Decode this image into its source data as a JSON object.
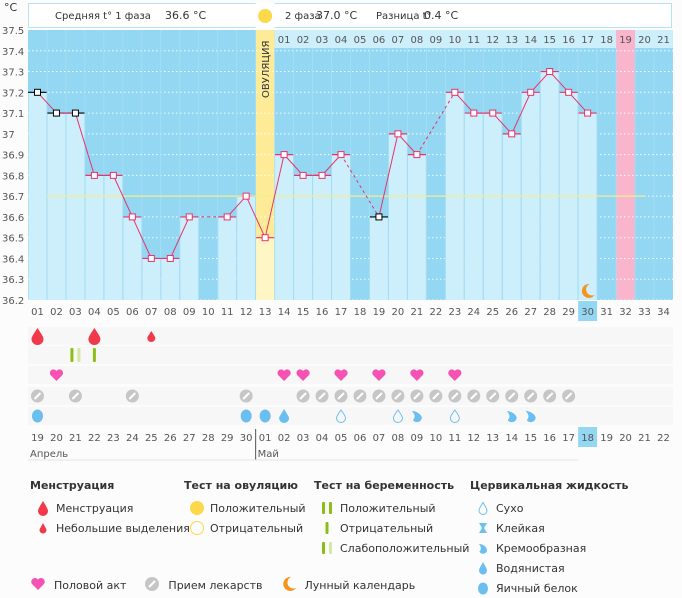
{
  "header": {
    "unit": "°C",
    "phase1_label": "Средняя t° 1 фаза",
    "phase1_value": "36.6 °C",
    "phase2_label": "2 фаза",
    "phase2_value": "37.0 °C",
    "diff_label": "Разница t°",
    "diff_value": "0.4 °C",
    "ovulation_label": "ОВУЛЯЦИЯ"
  },
  "chart_data": {
    "type": "line",
    "title": "",
    "ylabel": "°C",
    "ylim": [
      36.2,
      37.5
    ],
    "yticks": [
      "37.5",
      "37.4",
      "37.3",
      "37.2",
      "37.1",
      "37",
      "36.9",
      "36.8",
      "36.7",
      "36.6",
      "36.5",
      "36.4",
      "36.3",
      "36.2"
    ],
    "coverline": 36.7,
    "ovulation_day": 13,
    "cycle_days": [
      "01",
      "02",
      "03",
      "04",
      "05",
      "06",
      "07",
      "08",
      "09",
      "10",
      "11",
      "12",
      "13",
      "14",
      "15",
      "16",
      "17",
      "18",
      "19",
      "20",
      "21",
      "22",
      "23",
      "24",
      "25",
      "26",
      "27",
      "28",
      "29",
      "30",
      "31",
      "32",
      "33",
      "34"
    ],
    "post_ovulation_days": [
      "01",
      "02",
      "03",
      "04",
      "05",
      "06",
      "07",
      "08",
      "09",
      "10",
      "11",
      "12",
      "13",
      "14",
      "15",
      "16",
      "17",
      "18",
      "19",
      "20",
      "21"
    ],
    "current_day": 30,
    "expected_period_day": 32,
    "series": [
      {
        "name": "Базальная температура",
        "values": [
          37.2,
          37.1,
          37.1,
          36.8,
          36.8,
          36.6,
          36.4,
          36.4,
          36.6,
          null,
          36.6,
          36.7,
          36.5,
          36.9,
          36.8,
          36.8,
          36.9,
          null,
          36.6,
          37.0,
          36.9,
          null,
          37.2,
          37.1,
          37.1,
          37.0,
          37.2,
          37.3,
          37.2,
          37.1,
          null,
          null,
          null,
          null
        ],
        "excluded_days": [
          1,
          2,
          3,
          19
        ]
      }
    ],
    "calendar_dates": [
      "19",
      "20",
      "21",
      "22",
      "23",
      "24",
      "25",
      "26",
      "27",
      "28",
      "29",
      "30",
      "01",
      "02",
      "03",
      "04",
      "05",
      "06",
      "07",
      "08",
      "09",
      "10",
      "11",
      "12",
      "13",
      "14",
      "15",
      "16",
      "17",
      "18",
      "19",
      "20",
      "21",
      "22"
    ],
    "weekend_indices": [
      1,
      2,
      8,
      9,
      15,
      16,
      22,
      23,
      30
    ],
    "today_index": 29,
    "months": [
      {
        "label": "Апрель",
        "start_index": 0
      },
      {
        "label": "Май",
        "start_index": 12
      }
    ],
    "markers": {
      "menstruation": [
        {
          "day": 1,
          "size": "heavy"
        },
        {
          "day": 4,
          "size": "heavy"
        },
        {
          "day": 7,
          "size": "light"
        }
      ],
      "pregnancy_test": [
        {
          "day": 3,
          "result": "weak"
        },
        {
          "day": 4,
          "result": "negative"
        }
      ],
      "intercourse": [
        2,
        14,
        15,
        17,
        19,
        21,
        23
      ],
      "medication": [
        1,
        3,
        6,
        12,
        15,
        16,
        17,
        18,
        19,
        20,
        21,
        22,
        23,
        24,
        25,
        26,
        27,
        28,
        29
      ],
      "cervical_fluid": [
        {
          "day": 1,
          "type": "egg_white"
        },
        {
          "day": 12,
          "type": "egg_white"
        },
        {
          "day": 13,
          "type": "egg_white"
        },
        {
          "day": 14,
          "type": "watery"
        },
        {
          "day": 17,
          "type": "dry"
        },
        {
          "day": 20,
          "type": "dry"
        },
        {
          "day": 21,
          "type": "creamy"
        },
        {
          "day": 23,
          "type": "dry"
        },
        {
          "day": 26,
          "type": "creamy"
        },
        {
          "day": 27,
          "type": "creamy"
        }
      ],
      "moon": [
        30
      ]
    }
  },
  "legend": {
    "menstruation": {
      "title": "Менструация",
      "items": [
        "Менструация",
        "Небольшие выделения"
      ]
    },
    "ovulation_test": {
      "title": "Тест на овуляцию",
      "items": [
        "Положительный",
        "Отрицательный"
      ]
    },
    "pregnancy_test": {
      "title": "Тест на беременность",
      "items": [
        "Положительный",
        "Отрицательный",
        "Слабоположительный"
      ]
    },
    "cervical": {
      "title": "Цервикальная жидкость",
      "items": [
        "Сухо",
        "Клейкая",
        "Кремообразная",
        "Водянистая",
        "Яичный белок"
      ]
    },
    "bottom": [
      "Половой акт",
      "Прием лекарств",
      "Лунный календарь"
    ]
  },
  "colors": {
    "sky": "#93d7f2",
    "bar": "#cdeefb",
    "line": "#e8336b",
    "ovulation": "#fdeb98",
    "period": "#f9b5cb",
    "coverline": "#f3ee8a",
    "blood": "#f0394b",
    "heart": "#f652b4",
    "pill": "#c6c6c6",
    "fluid": "#6bbfee",
    "test": "#8bbf17",
    "test_light": "#d4e8a6",
    "sun": "#fbd94a",
    "moon": "#f3941d",
    "weekend": "#e8336b"
  }
}
